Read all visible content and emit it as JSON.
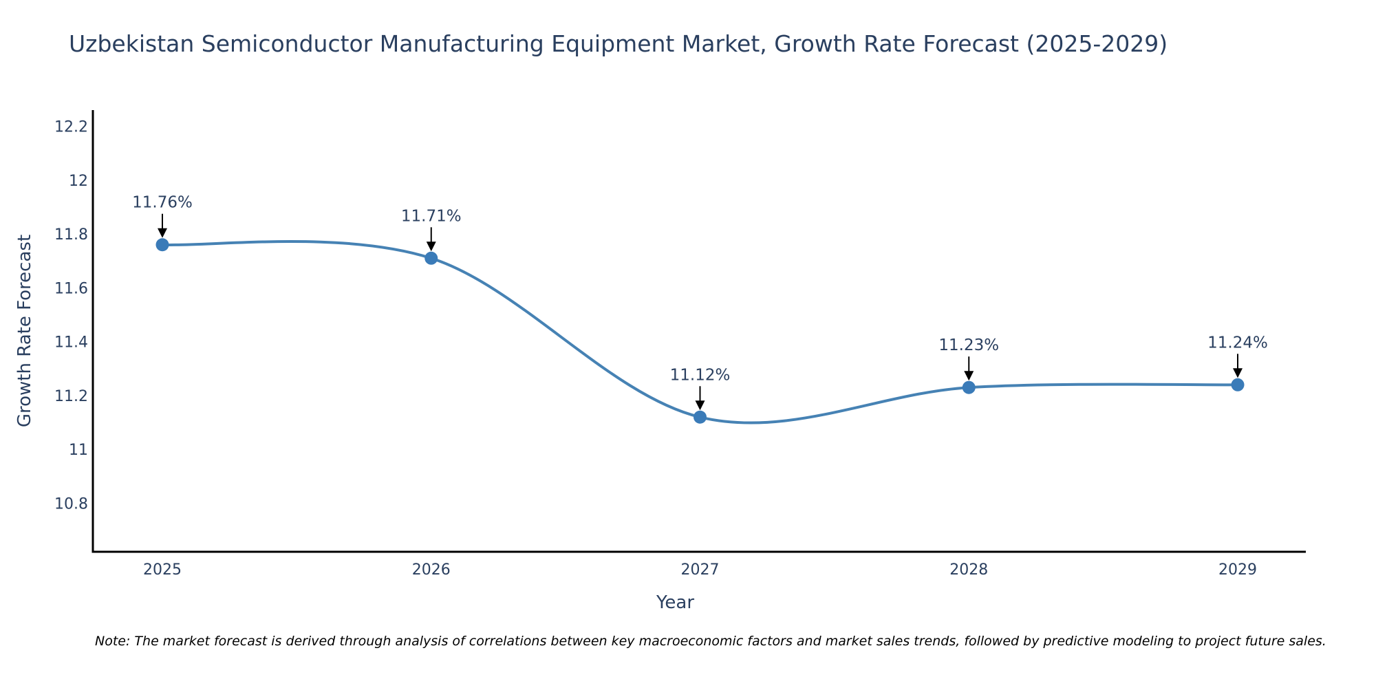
{
  "chart_data": {
    "type": "line",
    "title": "Uzbekistan Semiconductor Manufacturing Equipment Market, Growth Rate Forecast (2025-2029)",
    "xlabel": "Year",
    "ylabel": "Growth Rate Forecast",
    "categories": [
      "2025",
      "2026",
      "2027",
      "2028",
      "2029"
    ],
    "values": [
      11.76,
      11.71,
      11.12,
      11.23,
      11.24
    ],
    "data_labels": [
      "11.76%",
      "11.71%",
      "11.12%",
      "11.23%",
      "11.24%"
    ],
    "ylim": [
      10.62,
      12.26
    ],
    "yticks": [
      10.8,
      11,
      11.2,
      11.4,
      11.6,
      11.8,
      12,
      12.2
    ],
    "ytick_labels": [
      "10.8",
      "11",
      "11.2",
      "11.4",
      "11.6",
      "11.8",
      "12",
      "12.2"
    ],
    "grid": false,
    "line_color": "#4682b4",
    "marker_color": "#3a7bb8",
    "line_shape": "spline"
  },
  "note": "Note: The market forecast is derived through analysis of correlations between key macroeconomic factors and market sales trends, followed by predictive modeling to project future sales."
}
